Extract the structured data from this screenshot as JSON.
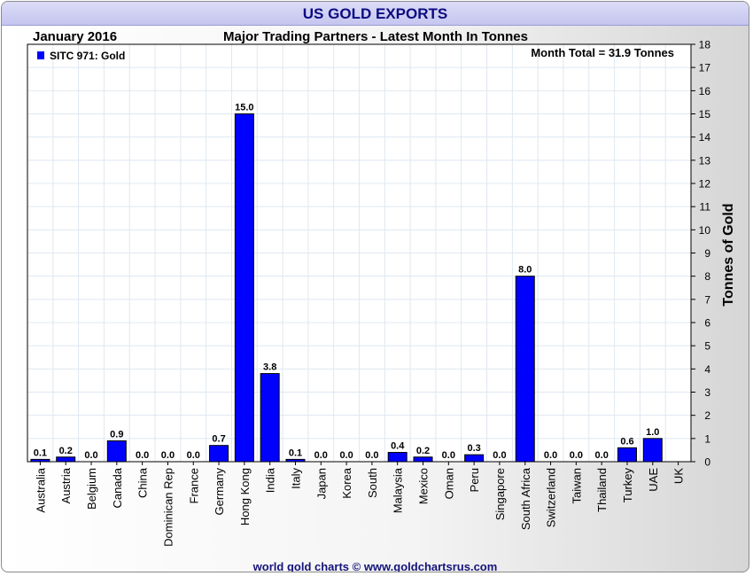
{
  "title": "US GOLD EXPORTS",
  "subtitle_left": "January 2016",
  "subtitle_center": "Major Trading Partners - Latest Month In Tonnes",
  "footer": "world gold charts © www.goldchartsrus.com",
  "colors": {
    "bar": "#0000ff",
    "title_text": "#0b0b80",
    "grid": "#dfe8f0"
  },
  "chart_data": {
    "type": "bar",
    "title": "US GOLD EXPORTS",
    "subtitle": "Major Trading Partners - Latest Month In Tonnes",
    "xlabel": "",
    "ylabel": "Tonnes of Gold",
    "ylim": [
      0,
      18
    ],
    "yticks": [
      0,
      1,
      2,
      3,
      4,
      5,
      6,
      7,
      8,
      9,
      10,
      11,
      12,
      13,
      14,
      15,
      16,
      17,
      18
    ],
    "grid": true,
    "legend": {
      "label": "SITC 971: Gold",
      "position": "top-left"
    },
    "annotation": "Month Total = 31.9 Tonnes",
    "categories": [
      "Australia",
      "Austria",
      "Belgium",
      "Canada",
      "China",
      "Dominican Rep",
      "France",
      "Germany",
      "Hong Kong",
      "India",
      "Italy",
      "Japan",
      "Korea",
      "South",
      "Malaysia",
      "Mexico",
      "Oman",
      "Peru",
      "Singapore",
      "South Africa",
      "Switzerland",
      "Taiwan",
      "Thailand",
      "Turkey",
      "UAE",
      "UK"
    ],
    "values": [
      0.1,
      0.2,
      0.0,
      0.9,
      0.0,
      0.0,
      0.0,
      0.7,
      15.0,
      3.8,
      0.1,
      0.0,
      0.0,
      0.0,
      0.4,
      0.2,
      0.0,
      0.3,
      0.0,
      8.0,
      0.0,
      0.0,
      0.0,
      0.6,
      1.0,
      null
    ],
    "value_labels": [
      "0.1",
      "0.2",
      "0.0",
      "0.9",
      "0.0",
      "0.0",
      "0.0",
      "0.7",
      "15.0",
      "3.8",
      "0.1",
      "0.0",
      "0.0",
      "0.0",
      "0.4",
      "0.2",
      "0.0",
      "0.3",
      "0.0",
      "8.0",
      "0.0",
      "0.0",
      "0.0",
      "0.6",
      "1.0",
      ""
    ]
  }
}
